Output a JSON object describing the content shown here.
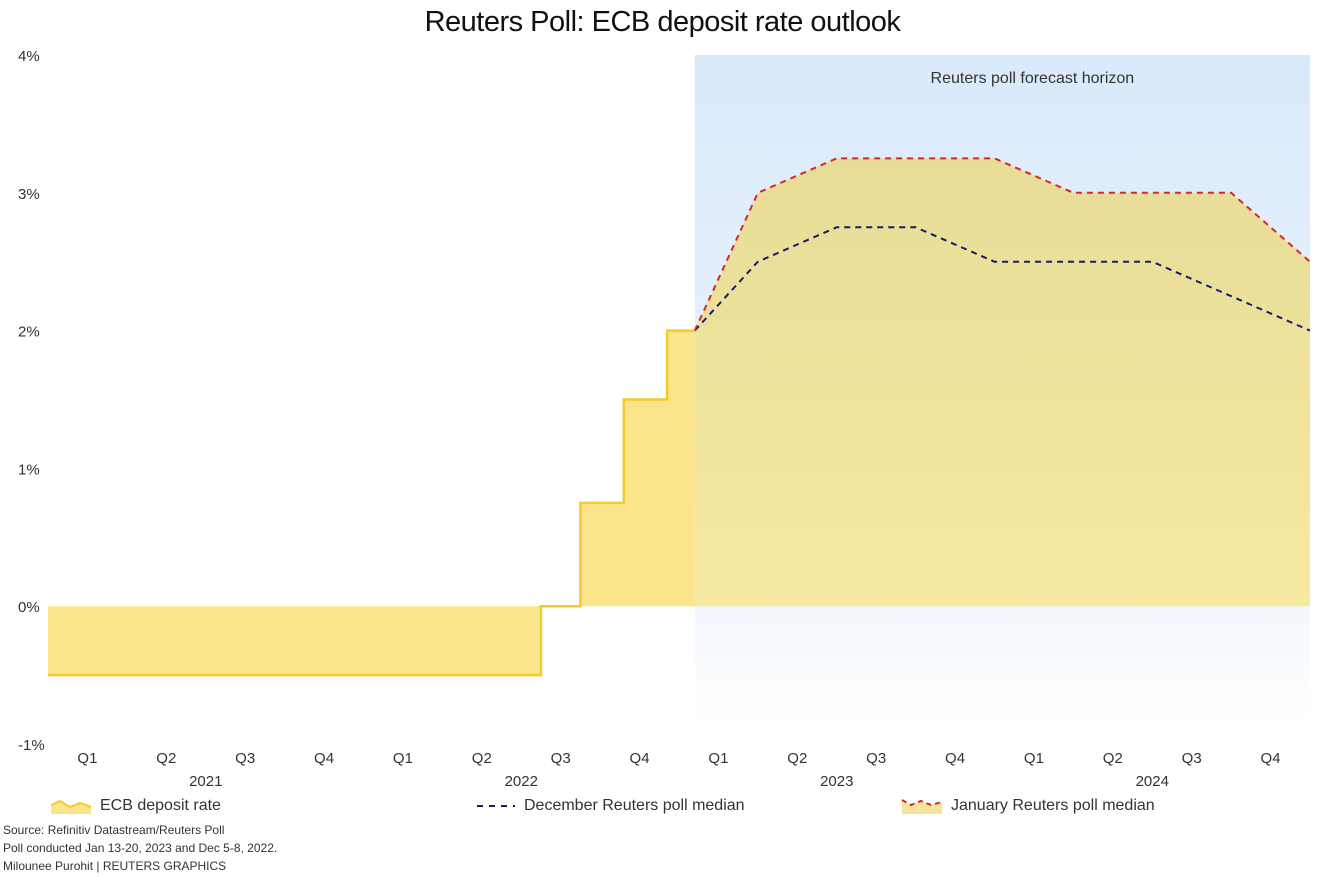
{
  "chart_data": {
    "type": "area",
    "title": "Reuters Poll: ECB deposit rate outlook",
    "ylim": [
      -1,
      4
    ],
    "y_ticks": [
      {
        "value": 4,
        "label": "4%"
      },
      {
        "value": 3,
        "label": "3%"
      },
      {
        "value": 2,
        "label": "2%"
      },
      {
        "value": 1,
        "label": "1%"
      },
      {
        "value": 0,
        "label": "0%"
      },
      {
        "value": -1,
        "label": "-1%"
      }
    ],
    "xlim": [
      0,
      16
    ],
    "quarter_ticks": [
      {
        "label": "Q1",
        "pos": 0.5
      },
      {
        "label": "Q2",
        "pos": 1.5
      },
      {
        "label": "Q3",
        "pos": 2.5
      },
      {
        "label": "Q4",
        "pos": 3.5
      },
      {
        "label": "Q1",
        "pos": 4.5
      },
      {
        "label": "Q2",
        "pos": 5.5
      },
      {
        "label": "Q3",
        "pos": 6.5
      },
      {
        "label": "Q4",
        "pos": 7.5
      },
      {
        "label": "Q1",
        "pos": 8.5
      },
      {
        "label": "Q2",
        "pos": 9.5
      },
      {
        "label": "Q3",
        "pos": 10.5
      },
      {
        "label": "Q4",
        "pos": 11.5
      },
      {
        "label": "Q1",
        "pos": 12.5
      },
      {
        "label": "Q2",
        "pos": 13.5
      },
      {
        "label": "Q3",
        "pos": 14.5
      },
      {
        "label": "Q4",
        "pos": 15.5
      }
    ],
    "year_labels": [
      {
        "label": "2021",
        "pos": 2
      },
      {
        "label": "2022",
        "pos": 6
      },
      {
        "label": "2023",
        "pos": 10
      },
      {
        "label": "2024",
        "pos": 14
      }
    ],
    "forecast_horizon": {
      "start": 8.2,
      "end": 16,
      "label": "Reuters poll forecast horizon"
    },
    "series": [
      {
        "name": "ECB deposit rate",
        "style": "step-area",
        "color": "#f6c92f",
        "fill": "#fbe58b",
        "points": [
          [
            0,
            -0.5
          ],
          [
            6.25,
            -0.5
          ],
          [
            6.25,
            0
          ],
          [
            6.75,
            0
          ],
          [
            6.75,
            0.75
          ],
          [
            7.3,
            0.75
          ],
          [
            7.3,
            1.5
          ],
          [
            7.85,
            1.5
          ],
          [
            7.85,
            2
          ],
          [
            8.2,
            2
          ]
        ]
      },
      {
        "name": "December Reuters poll median",
        "style": "dashed",
        "color": "#1a1a6e",
        "points": [
          [
            8.2,
            2
          ],
          [
            9,
            2.5
          ],
          [
            10,
            2.75
          ],
          [
            11,
            2.75
          ],
          [
            12,
            2.5
          ],
          [
            13,
            2.5
          ],
          [
            14,
            2.5
          ],
          [
            15,
            2.25
          ],
          [
            16,
            2
          ]
        ]
      },
      {
        "name": "January Reuters poll median",
        "style": "dashed-area",
        "color": "#d7262a",
        "fill": "#ece08e",
        "points": [
          [
            8.2,
            2
          ],
          [
            9,
            3
          ],
          [
            10,
            3.25
          ],
          [
            11,
            3.25
          ],
          [
            12,
            3.25
          ],
          [
            13,
            3
          ],
          [
            14,
            3
          ],
          [
            15,
            3
          ],
          [
            16,
            2.5
          ]
        ]
      }
    ]
  },
  "legend": [
    {
      "label": "ECB deposit rate"
    },
    {
      "label": "December Reuters poll median"
    },
    {
      "label": "January Reuters poll median"
    }
  ],
  "source": {
    "line1": "Source: Refinitiv Datastream/Reuters Poll",
    "line2": "Poll conducted Jan 13-20, 2023 and Dec 5-8, 2022.",
    "line3": "Milounee Purohit | REUTERS GRAPHICS"
  }
}
